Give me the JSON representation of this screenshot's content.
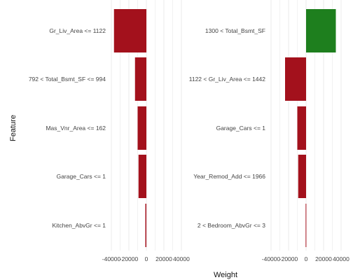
{
  "chart_data": {
    "type": "bar",
    "orientation": "horizontal",
    "xlabel": "Weight",
    "ylabel": "Feature",
    "xlim": [
      -40000,
      40000
    ],
    "xtick_values": [
      -40000,
      -20000,
      0,
      20000,
      40000
    ],
    "xtick_labels": [
      "-40000",
      "-20000",
      "0",
      "20000",
      "40000"
    ],
    "grid": true,
    "colors": {
      "negative": "#a3111c",
      "positive": "#1e7f1e",
      "grid": "#e6e6e6"
    },
    "panels": [
      {
        "features": [
          "Gr_Liv_Area <= 1122",
          "792 < Total_Bsmt_SF <= 994",
          "Mas_Vnr_Area <= 162",
          "Garage_Cars <= 1",
          "Kitchen_AbvGr <= 1"
        ],
        "values": [
          -37000,
          -13000,
          -10000,
          -9000,
          -1200
        ]
      },
      {
        "features": [
          "1300 < Total_Bsmt_SF",
          "1122 < Gr_Liv_Area <= 1442",
          "Garage_Cars <= 1",
          "Year_Remod_Add <= 1966",
          "2 < Bedroom_AbvGr <= 3"
        ],
        "values": [
          34000,
          -24000,
          -10000,
          -9000,
          -500
        ]
      }
    ]
  }
}
